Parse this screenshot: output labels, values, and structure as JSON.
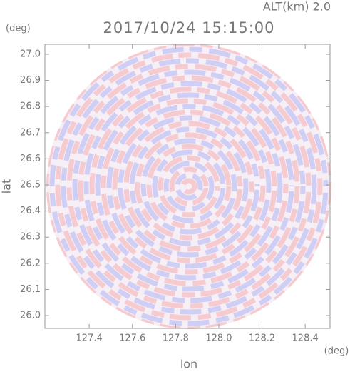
{
  "chart_data": {
    "type": "radar-image",
    "title": "2017/10/24 15:15:00",
    "subtitle": "ALT(km) 2.0",
    "x_label": "lon",
    "y_label": "lat",
    "x_unit": "(deg)",
    "y_unit": "(deg)",
    "xlim": [
      127.195,
      128.515
    ],
    "ylim": [
      25.951,
      27.038
    ],
    "xticks": [
      127.4,
      127.6,
      127.8,
      {
        "value": 128.0,
        "label": "128.0"
      },
      128.2,
      128.4
    ],
    "yticks": [
      {
        "value": 26.0,
        "label": "26.0"
      },
      26.1,
      26.2,
      26.3,
      26.4,
      26.5,
      26.6,
      26.7,
      26.8,
      26.9,
      {
        "value": 27.0,
        "label": "27.0"
      }
    ]
  }
}
